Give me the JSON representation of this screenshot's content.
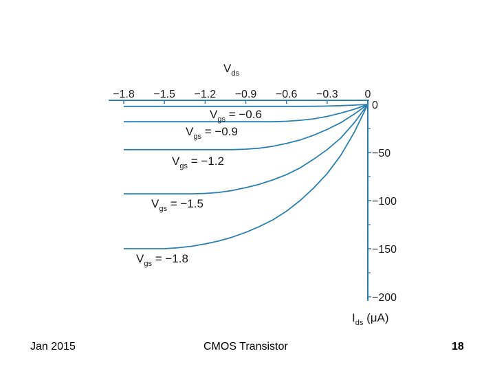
{
  "chart_data": {
    "type": "line",
    "x_axis": {
      "label_main": "V",
      "label_sub": "ds",
      "ticks": [
        "−1.8",
        "−1.5",
        "−1.2",
        "−0.9",
        "−0.6",
        "−0.3",
        "0"
      ],
      "tick_values": [
        -1.8,
        -1.5,
        -1.2,
        -0.9,
        -0.6,
        -0.3,
        0
      ],
      "range": [
        -1.8,
        0
      ]
    },
    "y_axis": {
      "label_main": "I",
      "label_sub": "ds",
      "label_unit": " (μA)",
      "ticks": [
        "0",
        "−50",
        "−100",
        "−150",
        "−200"
      ],
      "tick_values": [
        0,
        -50,
        -100,
        -150,
        -200
      ],
      "range": [
        -200,
        0
      ]
    },
    "series": [
      {
        "label_main": "V",
        "label_sub": "gs",
        "label_value": " = −0.6",
        "saturation_current": -2,
        "x": [
          -1.8,
          -0.5,
          -0.4,
          -0.3,
          -0.2,
          -0.1,
          0
        ],
        "y": [
          -2,
          -2,
          -1.9,
          -1.7,
          -1.3,
          -0.7,
          0
        ]
      },
      {
        "label_main": "V",
        "label_sub": "gs",
        "label_value": " = −0.9",
        "saturation_current": -18,
        "x": [
          -1.8,
          -0.7,
          -0.6,
          -0.5,
          -0.4,
          -0.3,
          -0.2,
          -0.1,
          0
        ],
        "y": [
          -18,
          -18,
          -17.5,
          -16.5,
          -15,
          -12.5,
          -9,
          -5,
          0
        ]
      },
      {
        "label_main": "V",
        "label_sub": "gs",
        "label_value": " = −1.2",
        "saturation_current": -47,
        "x": [
          -1.8,
          -1.0,
          -0.9,
          -0.8,
          -0.7,
          -0.6,
          -0.5,
          -0.4,
          -0.3,
          -0.2,
          -0.1,
          0
        ],
        "y": [
          -47,
          -47,
          -46.5,
          -45.5,
          -43.5,
          -40.5,
          -37,
          -32,
          -26,
          -19,
          -10,
          0
        ]
      },
      {
        "label_main": "V",
        "label_sub": "gs",
        "label_value": " = −1.5",
        "saturation_current": -93,
        "x": [
          -1.8,
          -1.3,
          -1.2,
          -1.1,
          -1.0,
          -0.9,
          -0.8,
          -0.7,
          -0.6,
          -0.5,
          -0.4,
          -0.3,
          -0.2,
          -0.1,
          0
        ],
        "y": [
          -93,
          -93,
          -92.5,
          -91.5,
          -89.5,
          -86.5,
          -83,
          -78.5,
          -73,
          -66,
          -57,
          -47,
          -35,
          -19,
          0
        ]
      },
      {
        "label_main": "V",
        "label_sub": "gs",
        "label_value": " = −1.8",
        "saturation_current": -150,
        "x": [
          -1.8,
          -1.5,
          -1.4,
          -1.3,
          -1.2,
          -1.1,
          -1.0,
          -0.9,
          -0.8,
          -0.7,
          -0.6,
          -0.5,
          -0.4,
          -0.3,
          -0.2,
          -0.1,
          0
        ],
        "y": [
          -150,
          -150,
          -149,
          -147.5,
          -145,
          -142,
          -138,
          -133,
          -127,
          -120,
          -111,
          -100,
          -87,
          -72,
          -53,
          -29,
          0
        ]
      }
    ],
    "line_color": "#2a7fae"
  },
  "footer": {
    "date": "Jan 2015",
    "title": "CMOS Transistor",
    "page": "18"
  }
}
